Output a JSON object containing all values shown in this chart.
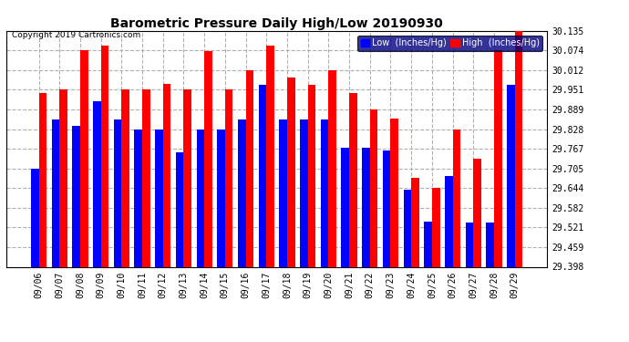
{
  "title": "Barometric Pressure Daily High/Low 20190930",
  "copyright": "Copyright 2019 Cartronics.com",
  "dates": [
    "09/06",
    "09/07",
    "09/08",
    "09/09",
    "09/10",
    "09/11",
    "09/12",
    "09/13",
    "09/14",
    "09/15",
    "09/16",
    "09/17",
    "09/18",
    "09/19",
    "09/20",
    "09/21",
    "09/22",
    "09/23",
    "09/24",
    "09/25",
    "09/26",
    "09/27",
    "09/28",
    "09/29"
  ],
  "low": [
    29.705,
    29.857,
    29.838,
    29.916,
    29.857,
    29.828,
    29.828,
    29.755,
    29.828,
    29.828,
    29.857,
    29.965,
    29.857,
    29.857,
    29.857,
    29.77,
    29.77,
    29.76,
    29.64,
    29.54,
    29.68,
    29.535,
    29.535,
    29.965
  ],
  "high": [
    29.94,
    29.951,
    30.074,
    30.09,
    29.951,
    29.951,
    29.97,
    29.951,
    30.072,
    29.951,
    30.012,
    30.09,
    29.99,
    29.965,
    30.012,
    29.94,
    29.889,
    29.862,
    29.675,
    29.644,
    29.828,
    29.736,
    30.074,
    30.135
  ],
  "ylim_min": 29.398,
  "ylim_max": 30.135,
  "yticks": [
    29.398,
    29.459,
    29.521,
    29.582,
    29.644,
    29.705,
    29.767,
    29.828,
    29.889,
    29.951,
    30.012,
    30.074,
    30.135
  ],
  "low_color": "#0000ff",
  "high_color": "#ff0000",
  "bg_color": "#ffffff",
  "grid_color": "#b0b0b0",
  "bar_width": 0.38,
  "legend_low_label": "Low  (Inches/Hg)",
  "legend_high_label": "High  (Inches/Hg)"
}
